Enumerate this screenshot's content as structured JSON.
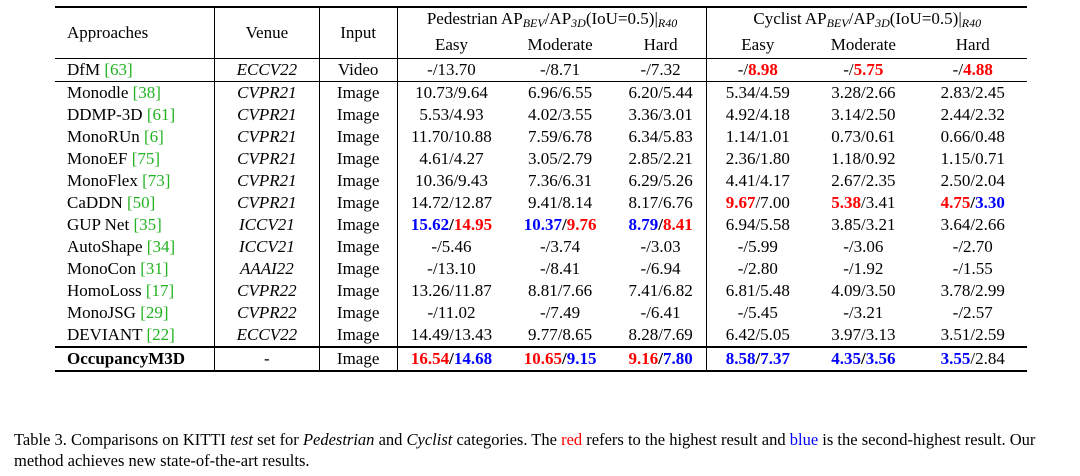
{
  "table": {
    "headers": {
      "approaches": "Approaches",
      "venue": "Venue",
      "input": "Input",
      "pedestrian_group": {
        "prefix": "Pedestrian AP",
        "sub1": "BEV",
        "mid": "/AP",
        "sub2": "3D",
        "suffix": "(IoU=0.5)|",
        "sub3": "R40"
      },
      "cyclist_group": {
        "prefix": "Cyclist AP",
        "sub1": "BEV",
        "mid": "/AP",
        "sub2": "3D",
        "suffix": "(IoU=0.5)|",
        "sub3": "R40"
      },
      "easy": "Easy",
      "moderate": "Moderate",
      "hard": "Hard"
    },
    "dfm_row": {
      "name": "DfM",
      "ref": "[63]",
      "venue": "ECCV22",
      "input": "Video",
      "ped_easy": "-/13.70",
      "ped_mod": "-/8.71",
      "ped_hard": "-/7.32",
      "cyc_easy_a": "-/",
      "cyc_easy_b": "8.98",
      "cyc_mod_a": "-/",
      "cyc_mod_b": "5.75",
      "cyc_hard_a": "-/",
      "cyc_hard_b": "4.88"
    },
    "rows": [
      {
        "name": "Monodle",
        "ref": "[38]",
        "venue": "CVPR21",
        "input": "Image",
        "v": [
          "10.73/9.64",
          "6.96/6.55",
          "6.20/5.44",
          "5.34/4.59",
          "3.28/2.66",
          "2.83/2.45"
        ]
      },
      {
        "name": "DDMP-3D",
        "ref": "[61]",
        "venue": "CVPR21",
        "input": "Image",
        "v": [
          "5.53/4.93",
          "4.02/3.55",
          "3.36/3.01",
          "4.92/4.18",
          "3.14/2.50",
          "2.44/2.32"
        ]
      },
      {
        "name": "MonoRUn",
        "ref": "[6]",
        "venue": "CVPR21",
        "input": "Image",
        "v": [
          "11.70/10.88",
          "7.59/6.78",
          "6.34/5.83",
          "1.14/1.01",
          "0.73/0.61",
          "0.66/0.48"
        ]
      },
      {
        "name": "MonoEF",
        "ref": "[75]",
        "venue": "CVPR21",
        "input": "Image",
        "v": [
          "4.61/4.27",
          "3.05/2.79",
          "2.85/2.21",
          "2.36/1.80",
          "1.18/0.92",
          "1.15/0.71"
        ]
      },
      {
        "name": "MonoFlex",
        "ref": "[73]",
        "venue": "CVPR21",
        "input": "Image",
        "v": [
          "10.36/9.43",
          "7.36/6.31",
          "6.29/5.26",
          "4.41/4.17",
          "2.67/2.35",
          "2.50/2.04"
        ]
      }
    ],
    "caddn_row": {
      "name": "CaDDN",
      "ref": "[50]",
      "venue": "CVPR21",
      "input": "Image",
      "ped_easy": "14.72/12.87",
      "ped_mod": "9.41/8.14",
      "ped_hard": "8.17/6.76",
      "cyc_easy_a": "9.67",
      "cyc_easy_b": "/7.00",
      "cyc_mod_a": "5.38",
      "cyc_mod_b": "/3.41",
      "cyc_hard_a": "4.75",
      "cyc_hard_sep": "/",
      "cyc_hard_b": "3.30"
    },
    "gup_row": {
      "name": "GUP Net",
      "ref": "[35]",
      "venue": "ICCV21",
      "input": "Image",
      "ped_easy_a": "15.62",
      "ped_easy_sep": "/",
      "ped_easy_b": "14.95",
      "ped_mod_a": "10.37",
      "ped_mod_sep": "/",
      "ped_mod_b": "9.76",
      "ped_hard_a": "8.79",
      "ped_hard_sep": "/",
      "ped_hard_b": "8.41",
      "cyc_easy": "6.94/5.58",
      "cyc_mod": "3.85/3.21",
      "cyc_hard": "3.64/2.66"
    },
    "rows2": [
      {
        "name": "AutoShape",
        "ref": "[34]",
        "venue": "ICCV21",
        "input": "Image",
        "v": [
          "-/5.46",
          "-/3.74",
          "-/3.03",
          "-/5.99",
          "-/3.06",
          "-/2.70"
        ]
      },
      {
        "name": "MonoCon",
        "ref": "[31]",
        "venue": "AAAI22",
        "input": "Image",
        "v": [
          "-/13.10",
          "-/8.41",
          "-/6.94",
          "-/2.80",
          "-/1.92",
          "-/1.55"
        ]
      },
      {
        "name": "HomoLoss",
        "ref": "[17]",
        "venue": "CVPR22",
        "input": "Image",
        "v": [
          "13.26/11.87",
          "8.81/7.66",
          "7.41/6.82",
          "6.81/5.48",
          "4.09/3.50",
          "3.78/2.99"
        ]
      },
      {
        "name": "MonoJSG",
        "ref": "[29]",
        "venue": "CVPR22",
        "input": "Image",
        "v": [
          "-/11.02",
          "-/7.49",
          "-/6.41",
          "-/5.45",
          "-/3.21",
          "-/2.57"
        ]
      },
      {
        "name": "DEVIANT",
        "ref": "[22]",
        "venue": "ECCV22",
        "input": "Image",
        "v": [
          "14.49/13.43",
          "9.77/8.65",
          "8.28/7.69",
          "6.42/5.05",
          "3.97/3.13",
          "3.51/2.59"
        ]
      }
    ],
    "ours_row": {
      "name": "OccupancyM3D",
      "venue": "-",
      "input": "Image",
      "ped_easy_a": "16.54",
      "ped_easy_sep": "/",
      "ped_easy_b": "14.68",
      "ped_mod_a": "10.65",
      "ped_mod_sep": "/",
      "ped_mod_b": "9.15",
      "ped_hard_a": "9.16",
      "ped_hard_sep": "/",
      "ped_hard_b": "7.80",
      "cyc_easy_a": "8.58",
      "cyc_easy_sep": "/",
      "cyc_easy_b": "7.37",
      "cyc_mod_a": "4.35",
      "cyc_mod_sep": "/",
      "cyc_mod_b": "3.56",
      "cyc_hard_a": "3.55",
      "cyc_hard_b": "/2.84"
    }
  },
  "caption": {
    "p1": "Table 3.  Comparisons on KITTI ",
    "test": "test",
    "p2": " set for ",
    "pedestrian": "Pedestrian",
    "p3": " and ",
    "cyclist": "Cyclist",
    "p4": " categories. The ",
    "red": "red",
    "p5": " refers to the highest result and ",
    "blue": "blue",
    "p6": " is the second-highest result. Our method achieves new state-of-the-art results."
  },
  "colors": {
    "best": "#ff0000",
    "second": "#0000ff",
    "ref": "#22b222"
  }
}
